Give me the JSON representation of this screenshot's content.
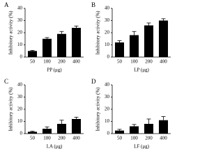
{
  "chart_data": [
    {
      "type": "bar",
      "label": "A",
      "xlabel": "PP (μg)",
      "ylabel": "Inhibitory activity (%)",
      "categories": [
        "50",
        "100",
        "200",
        "400"
      ],
      "values": [
        5,
        15,
        19,
        24
      ],
      "errors": [
        0.5,
        1,
        2,
        1.5
      ],
      "color": "#000000",
      "ylim": [
        0,
        40
      ],
      "yticks": [
        0,
        10,
        20,
        30,
        40
      ]
    },
    {
      "type": "bar",
      "label": "B",
      "xlabel": "LP (μg)",
      "ylabel": "Inhibitory activity (%)",
      "categories": [
        "50",
        "100",
        "200",
        "400"
      ],
      "values": [
        12,
        18,
        26,
        30
      ],
      "errors": [
        1.5,
        3,
        2,
        1.5
      ],
      "color": "#000000",
      "ylim": [
        0,
        40
      ],
      "yticks": [
        0,
        10,
        20,
        30,
        40
      ]
    },
    {
      "type": "bar",
      "label": "C",
      "xlabel": "LA (μg)",
      "ylabel": "Inhibitory activity (%)",
      "categories": [
        "50",
        "100",
        "200",
        "400"
      ],
      "values": [
        1.5,
        4,
        8,
        12
      ],
      "errors": [
        0.5,
        1.5,
        3,
        1.5
      ],
      "color": "#000000",
      "ylim": [
        0,
        40
      ],
      "yticks": [
        0,
        10,
        20,
        30,
        40
      ]
    },
    {
      "type": "bar",
      "label": "D",
      "xlabel": "LF (μg)",
      "ylabel": "Inhibitory activity (%)",
      "categories": [
        "50",
        "100",
        "200",
        "400"
      ],
      "values": [
        2.5,
        6,
        8,
        11
      ],
      "errors": [
        1,
        1.5,
        4,
        3
      ],
      "color": "#000000",
      "ylim": [
        0,
        40
      ],
      "yticks": [
        0,
        10,
        20,
        30,
        40
      ]
    }
  ]
}
